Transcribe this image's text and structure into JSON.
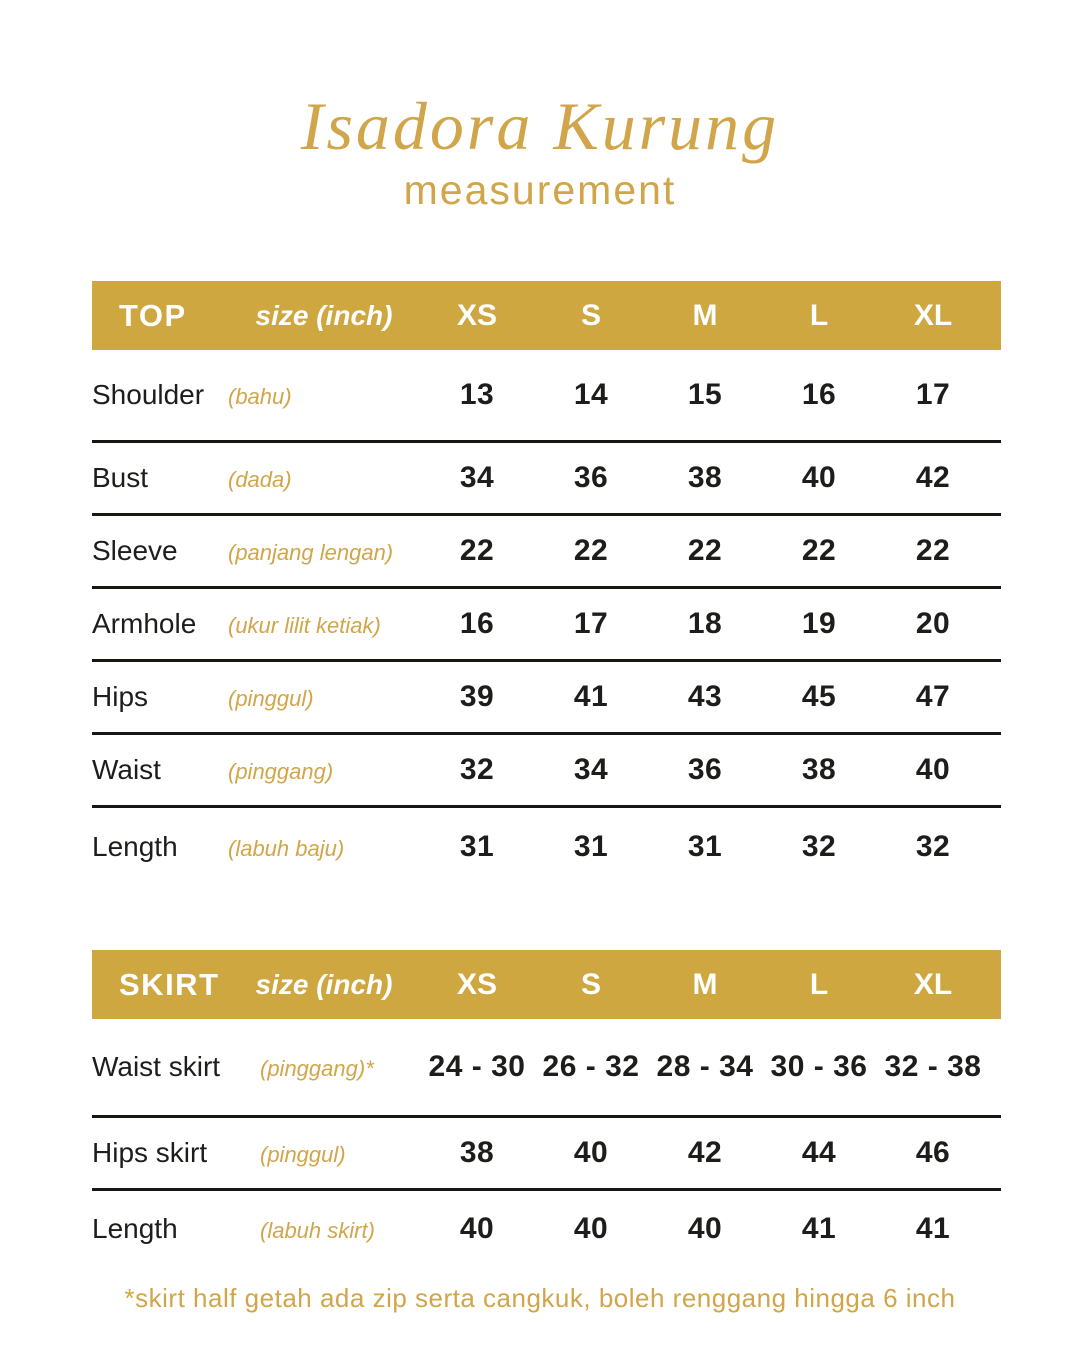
{
  "page": {
    "title": "Isadora Kurung",
    "subtitle": "measurement",
    "footnote": "*skirt half getah ada zip serta cangkuk, boleh renggang hingga 6 inch"
  },
  "colors": {
    "gold_bar": "#CFA740",
    "gold_text": "#D1A64A",
    "ink": "#1D1D1B"
  },
  "tables": [
    {
      "name": "TOP",
      "size_label": "size (inch)",
      "columns": [
        "XS",
        "S",
        "M",
        "L",
        "XL"
      ],
      "rows": [
        {
          "label": "Shoulder",
          "translation": "(bahu)",
          "values": [
            "13",
            "14",
            "15",
            "16",
            "17"
          ]
        },
        {
          "label": "Bust",
          "translation": "(dada)",
          "values": [
            "34",
            "36",
            "38",
            "40",
            "42"
          ]
        },
        {
          "label": "Sleeve",
          "translation": "(panjang lengan)",
          "values": [
            "22",
            "22",
            "22",
            "22",
            "22"
          ]
        },
        {
          "label": "Armhole",
          "translation": "(ukur lilit ketiak)",
          "values": [
            "16",
            "17",
            "18",
            "19",
            "20"
          ]
        },
        {
          "label": "Hips",
          "translation": "(pinggul)",
          "values": [
            "39",
            "41",
            "43",
            "45",
            "47"
          ]
        },
        {
          "label": "Waist",
          "translation": "(pinggang)",
          "values": [
            "32",
            "34",
            "36",
            "38",
            "40"
          ]
        },
        {
          "label": "Length",
          "translation": "(labuh baju)",
          "values": [
            "31",
            "31",
            "31",
            "32",
            "32"
          ]
        }
      ]
    },
    {
      "name": "SKIRT",
      "size_label": "size (inch)",
      "columns": [
        "XS",
        "S",
        "M",
        "L",
        "XL"
      ],
      "rows": [
        {
          "label": "Waist skirt",
          "translation": "(pinggang)*",
          "values": [
            "24 - 30",
            "26 - 32",
            "28 - 34",
            "30 - 36",
            "32 - 38"
          ]
        },
        {
          "label": "Hips skirt",
          "translation": "(pinggul)",
          "values": [
            "38",
            "40",
            "42",
            "44",
            "46"
          ]
        },
        {
          "label": "Length",
          "translation": "(labuh skirt)",
          "values": [
            "40",
            "40",
            "40",
            "41",
            "41"
          ]
        }
      ]
    }
  ]
}
